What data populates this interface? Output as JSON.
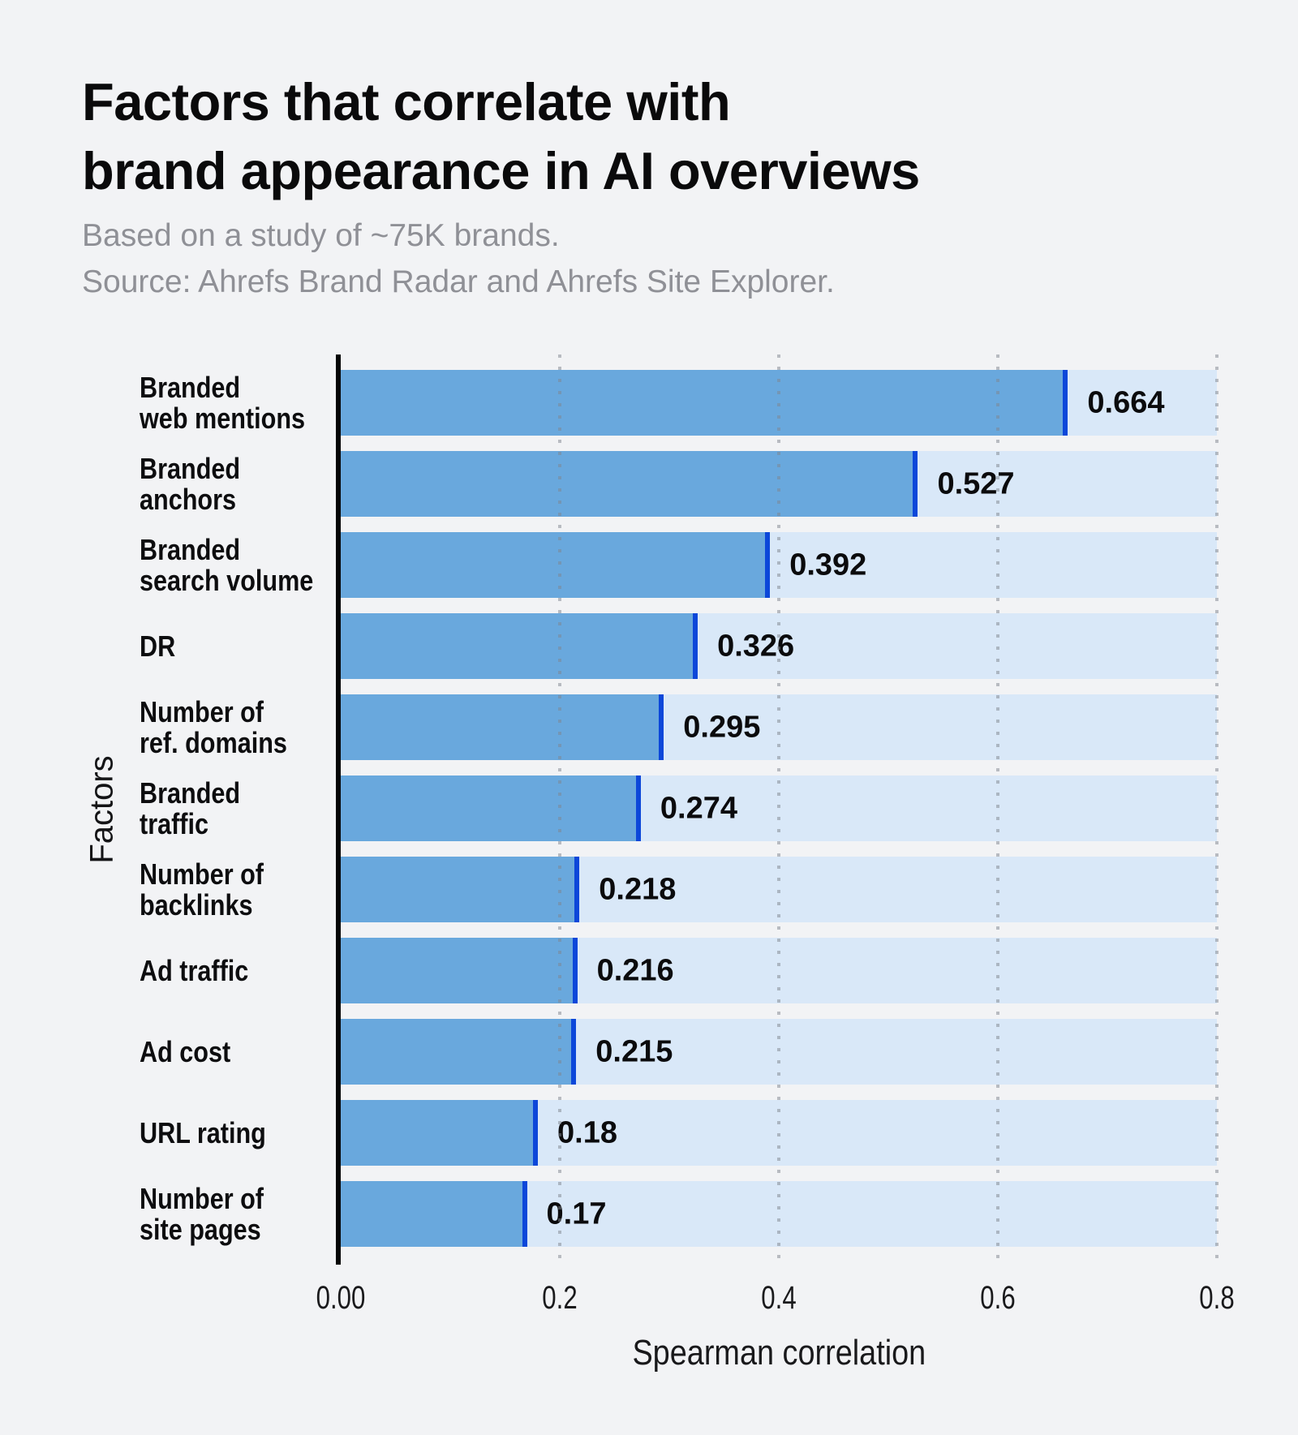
{
  "header": {
    "title_lines": [
      "Factors that correlate with",
      "brand appearance in AI overviews"
    ],
    "subtitle_lines": [
      "Based on a study of ~75K brands.",
      "Source: Ahrefs Brand Radar and Ahrefs Site Explorer."
    ]
  },
  "chart_data": {
    "type": "bar",
    "orientation": "horizontal",
    "title": "Factors that correlate with brand appearance in AI overviews",
    "subtitle": "Based on a study of ~75K brands. Source: Ahrefs Brand Radar and Ahrefs Site Explorer.",
    "xlabel": "Spearman correlation",
    "ylabel": "Factors",
    "xlim": [
      0,
      0.8
    ],
    "xticks": [
      "0.00",
      "0.2",
      "0.4",
      "0.6",
      "0.8"
    ],
    "xtick_values": [
      0,
      0.2,
      0.4,
      0.6,
      0.8
    ],
    "grid": "vertical dotted gridlines at each x tick",
    "legend": "none",
    "categories": [
      "Branded web mentions",
      "Branded anchors",
      "Branded search volume",
      "DR",
      "Number of ref. domains",
      "Branded traffic",
      "Number of backlinks",
      "Ad traffic",
      "Ad cost",
      "URL rating",
      "Number of site pages"
    ],
    "category_label_lines": [
      [
        "Branded",
        "web mentions"
      ],
      [
        "Branded",
        "anchors"
      ],
      [
        "Branded",
        "search volume"
      ],
      [
        "DR"
      ],
      [
        "Number of",
        "ref. domains"
      ],
      [
        "Branded",
        "traffic"
      ],
      [
        "Number of",
        "backlinks"
      ],
      [
        "Ad traffic"
      ],
      [
        "Ad cost"
      ],
      [
        "URL rating"
      ],
      [
        "Number of",
        "site pages"
      ]
    ],
    "values": [
      0.664,
      0.527,
      0.392,
      0.326,
      0.295,
      0.274,
      0.218,
      0.216,
      0.215,
      0.18,
      0.17
    ],
    "value_labels": [
      "0.664",
      "0.527",
      "0.392",
      "0.326",
      "0.295",
      "0.274",
      "0.218",
      "0.216",
      "0.215",
      "0.18",
      "0.17"
    ],
    "colors": {
      "background": "#f2f3f5",
      "bar_fill": "#69a8dd",
      "bar_edge": "#0c47d9",
      "bar_track": "#d9e8f8",
      "axis_line": "#050505",
      "grid_dot": "#7e848d",
      "title_text": "#0a0a0b",
      "subtitle_text": "#8f9096",
      "label_text": "#0d0d0f"
    }
  }
}
